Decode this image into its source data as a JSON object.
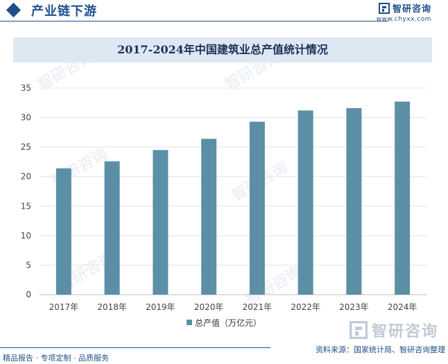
{
  "header": {
    "section_title": "产业链下游",
    "logo_name": "智研咨询",
    "logo_url": "www.chyxx.com",
    "watermark_text": "智研咨询"
  },
  "footer": {
    "left_text": "精品报告 · 专项定制 · 品质服务",
    "source_text": "资料来源：国家统计局、智研咨询整理"
  },
  "colors": {
    "bar": "#5b8fa6",
    "brand": "#1f4f8a",
    "title_bg": "#dde8f3"
  },
  "chart_data": {
    "type": "bar",
    "title": "2017-2024年中国建筑业总产值统计情况",
    "categories": [
      "2017年",
      "2018年",
      "2019年",
      "2020年",
      "2021年",
      "2022年",
      "2023年",
      "2024年"
    ],
    "series": [
      {
        "name": "总产值（万亿元）",
        "values": [
          21.4,
          22.6,
          24.5,
          26.4,
          29.3,
          31.2,
          31.6,
          32.7
        ]
      }
    ],
    "ylim": [
      0,
      35
    ],
    "yticks": [
      0,
      5,
      10,
      15,
      20,
      25,
      30,
      35
    ],
    "xlabel": "",
    "ylabel": "",
    "grid": true,
    "legend_position": "bottom"
  }
}
